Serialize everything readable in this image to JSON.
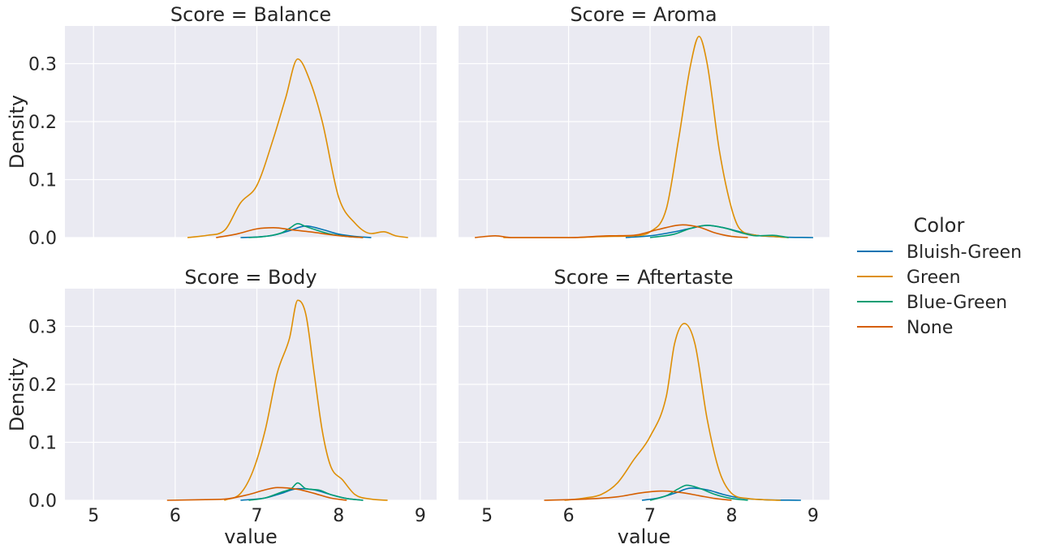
{
  "chart_data": {
    "type": "line",
    "legend": {
      "title": "Color",
      "placement": "right",
      "entries": [
        {
          "label": "Bluish-Green",
          "color": "#0173b2"
        },
        {
          "label": "Green",
          "color": "#de8f05"
        },
        {
          "label": "Blue-Green",
          "color": "#029e73"
        },
        {
          "label": "None",
          "color": "#d55e00"
        }
      ]
    },
    "x_ticks": [
      5,
      6,
      7,
      8,
      9
    ],
    "y_ticks": [
      0.0,
      0.1,
      0.2,
      0.3
    ],
    "xlim": [
      4.65,
      9.2
    ],
    "ylim": [
      0,
      0.365
    ],
    "xlabel": "value",
    "ylabel": "Density",
    "grid": true,
    "panels": [
      {
        "title": "Score = Balance",
        "series": [
          {
            "name": "Bluish-Green",
            "x": [
              6.8,
              7.0,
              7.2,
              7.4,
              7.6,
              7.8,
              8.0,
              8.2,
              8.4
            ],
            "y": [
              0.0,
              0.001,
              0.004,
              0.012,
              0.02,
              0.014,
              0.006,
              0.002,
              0.0
            ]
          },
          {
            "name": "Green",
            "x": [
              6.15,
              6.4,
              6.6,
              6.8,
              7.0,
              7.2,
              7.35,
              7.5,
              7.65,
              7.8,
              8.0,
              8.2,
              8.4,
              8.55,
              8.7,
              8.85
            ],
            "y": [
              0.0,
              0.004,
              0.012,
              0.06,
              0.09,
              0.17,
              0.24,
              0.308,
              0.27,
              0.2,
              0.07,
              0.025,
              0.007,
              0.01,
              0.003,
              0.0
            ]
          },
          {
            "name": "Blue-Green",
            "x": [
              6.9,
              7.1,
              7.3,
              7.4,
              7.5,
              7.6,
              7.75,
              7.9,
              8.1,
              8.3
            ],
            "y": [
              0.0,
              0.002,
              0.008,
              0.016,
              0.024,
              0.019,
              0.012,
              0.006,
              0.002,
              0.0
            ]
          },
          {
            "name": "None",
            "x": [
              6.5,
              6.75,
              7.0,
              7.2,
              7.45,
              7.7,
              7.9,
              8.1,
              8.3
            ],
            "y": [
              0.0,
              0.006,
              0.015,
              0.017,
              0.013,
              0.009,
              0.005,
              0.002,
              0.0
            ]
          }
        ]
      },
      {
        "title": "Score = Aroma",
        "series": [
          {
            "name": "Bluish-Green",
            "x": [
              6.7,
              7.0,
              7.3,
              7.5,
              7.7,
              7.9,
              8.1,
              8.3,
              8.6,
              9.0
            ],
            "y": [
              0.0,
              0.003,
              0.01,
              0.016,
              0.021,
              0.017,
              0.01,
              0.004,
              0.001,
              0.0
            ]
          },
          {
            "name": "Green",
            "x": [
              5.2,
              6.0,
              6.5,
              6.8,
              7.0,
              7.2,
              7.35,
              7.5,
              7.6,
              7.7,
              7.85,
              8.0,
              8.1,
              8.3,
              8.5,
              8.7
            ],
            "y": [
              0.0,
              0.0,
              0.002,
              0.003,
              0.01,
              0.05,
              0.17,
              0.3,
              0.347,
              0.3,
              0.15,
              0.05,
              0.015,
              0.004,
              0.002,
              0.0
            ]
          },
          {
            "name": "Blue-Green",
            "x": [
              7.0,
              7.3,
              7.5,
              7.7,
              7.9,
              8.1,
              8.3,
              8.5,
              8.7
            ],
            "y": [
              0.0,
              0.006,
              0.016,
              0.021,
              0.017,
              0.009,
              0.003,
              0.004,
              0.0
            ]
          },
          {
            "name": "None",
            "x": [
              4.85,
              5.1,
              5.3,
              6.0,
              6.5,
              6.8,
              7.1,
              7.4,
              7.6,
              7.8,
              8.0,
              8.2
            ],
            "y": [
              0.0,
              0.003,
              0.0,
              0.0,
              0.003,
              0.004,
              0.014,
              0.022,
              0.018,
              0.008,
              0.002,
              0.0
            ]
          }
        ]
      },
      {
        "title": "Score = Body",
        "series": [
          {
            "name": "Bluish-Green",
            "x": [
              6.8,
              7.1,
              7.3,
              7.5,
              7.7,
              7.9,
              8.1,
              8.3
            ],
            "y": [
              0.0,
              0.004,
              0.012,
              0.02,
              0.018,
              0.01,
              0.003,
              0.0
            ]
          },
          {
            "name": "Green",
            "x": [
              6.6,
              6.8,
              6.95,
              7.1,
              7.25,
              7.4,
              7.5,
              7.6,
              7.7,
              7.8,
              7.9,
              8.05,
              8.2,
              8.4,
              8.6
            ],
            "y": [
              0.0,
              0.012,
              0.05,
              0.12,
              0.22,
              0.28,
              0.345,
              0.32,
              0.22,
              0.12,
              0.06,
              0.035,
              0.01,
              0.002,
              0.0
            ]
          },
          {
            "name": "Blue-Green",
            "x": [
              6.9,
              7.1,
              7.3,
              7.42,
              7.5,
              7.6,
              7.75,
              7.9,
              8.1,
              8.3
            ],
            "y": [
              0.0,
              0.004,
              0.014,
              0.02,
              0.03,
              0.02,
              0.018,
              0.01,
              0.003,
              0.0
            ]
          },
          {
            "name": "None",
            "x": [
              5.9,
              6.3,
              6.6,
              6.9,
              7.1,
              7.25,
              7.5,
              7.7,
              7.9,
              8.1
            ],
            "y": [
              0.0,
              0.001,
              0.002,
              0.01,
              0.018,
              0.022,
              0.019,
              0.012,
              0.004,
              0.0
            ]
          }
        ]
      },
      {
        "title": "Score = Aftertaste",
        "series": [
          {
            "name": "Bluish-Green",
            "x": [
              6.9,
              7.1,
              7.3,
              7.5,
              7.7,
              7.9,
              8.1,
              8.4,
              8.85
            ],
            "y": [
              0.0,
              0.004,
              0.012,
              0.021,
              0.018,
              0.01,
              0.004,
              0.001,
              0.0
            ]
          },
          {
            "name": "Green",
            "x": [
              5.95,
              6.2,
              6.4,
              6.6,
              6.8,
              7.0,
              7.2,
              7.3,
              7.42,
              7.55,
              7.7,
              7.85,
              8.0,
              8.2,
              8.4,
              8.6
            ],
            "y": [
              0.0,
              0.004,
              0.01,
              0.03,
              0.07,
              0.11,
              0.18,
              0.27,
              0.305,
              0.27,
              0.14,
              0.05,
              0.012,
              0.003,
              0.001,
              0.0
            ]
          },
          {
            "name": "Blue-Green",
            "x": [
              7.0,
              7.2,
              7.35,
              7.45,
              7.6,
              7.8,
              8.0,
              8.2
            ],
            "y": [
              0.0,
              0.008,
              0.02,
              0.026,
              0.021,
              0.01,
              0.003,
              0.0
            ]
          },
          {
            "name": "None",
            "x": [
              5.7,
              6.2,
              6.6,
              6.9,
              7.15,
              7.4,
              7.6,
              7.8,
              8.0
            ],
            "y": [
              0.0,
              0.002,
              0.006,
              0.013,
              0.016,
              0.013,
              0.008,
              0.003,
              0.0
            ]
          }
        ]
      }
    ]
  }
}
